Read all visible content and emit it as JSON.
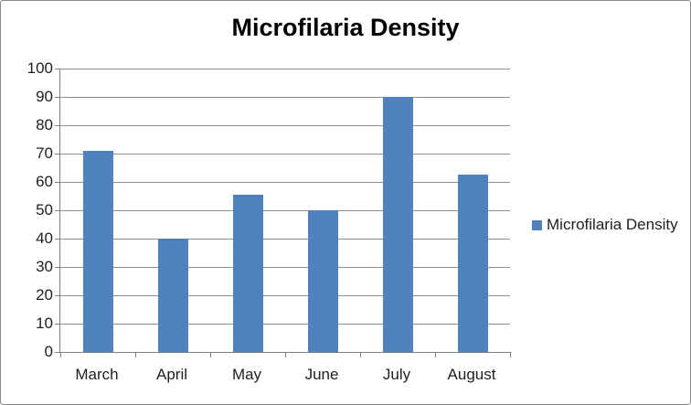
{
  "chart_data": {
    "type": "bar",
    "title": "Microfilaria Density",
    "categories": [
      "March",
      "April",
      "May",
      "June",
      "July",
      "August"
    ],
    "series": [
      {
        "name": "Microfilaria Density",
        "values": [
          71,
          40,
          55.5,
          50,
          90,
          62.5
        ]
      }
    ],
    "xlabel": "",
    "ylabel": "",
    "ylim": [
      0,
      100
    ],
    "yticks": [
      0,
      10,
      20,
      30,
      40,
      50,
      60,
      70,
      80,
      90,
      100
    ],
    "grid": "horizontal",
    "legend_position": "right",
    "colors": {
      "bar": "#4F81BD",
      "gridline": "#8E8E8E",
      "axis": "#7F7F7F",
      "text": "#1F1F1F",
      "title_text": "#000000",
      "background": "#FFFFFF",
      "border": "#8A8A8A"
    }
  }
}
